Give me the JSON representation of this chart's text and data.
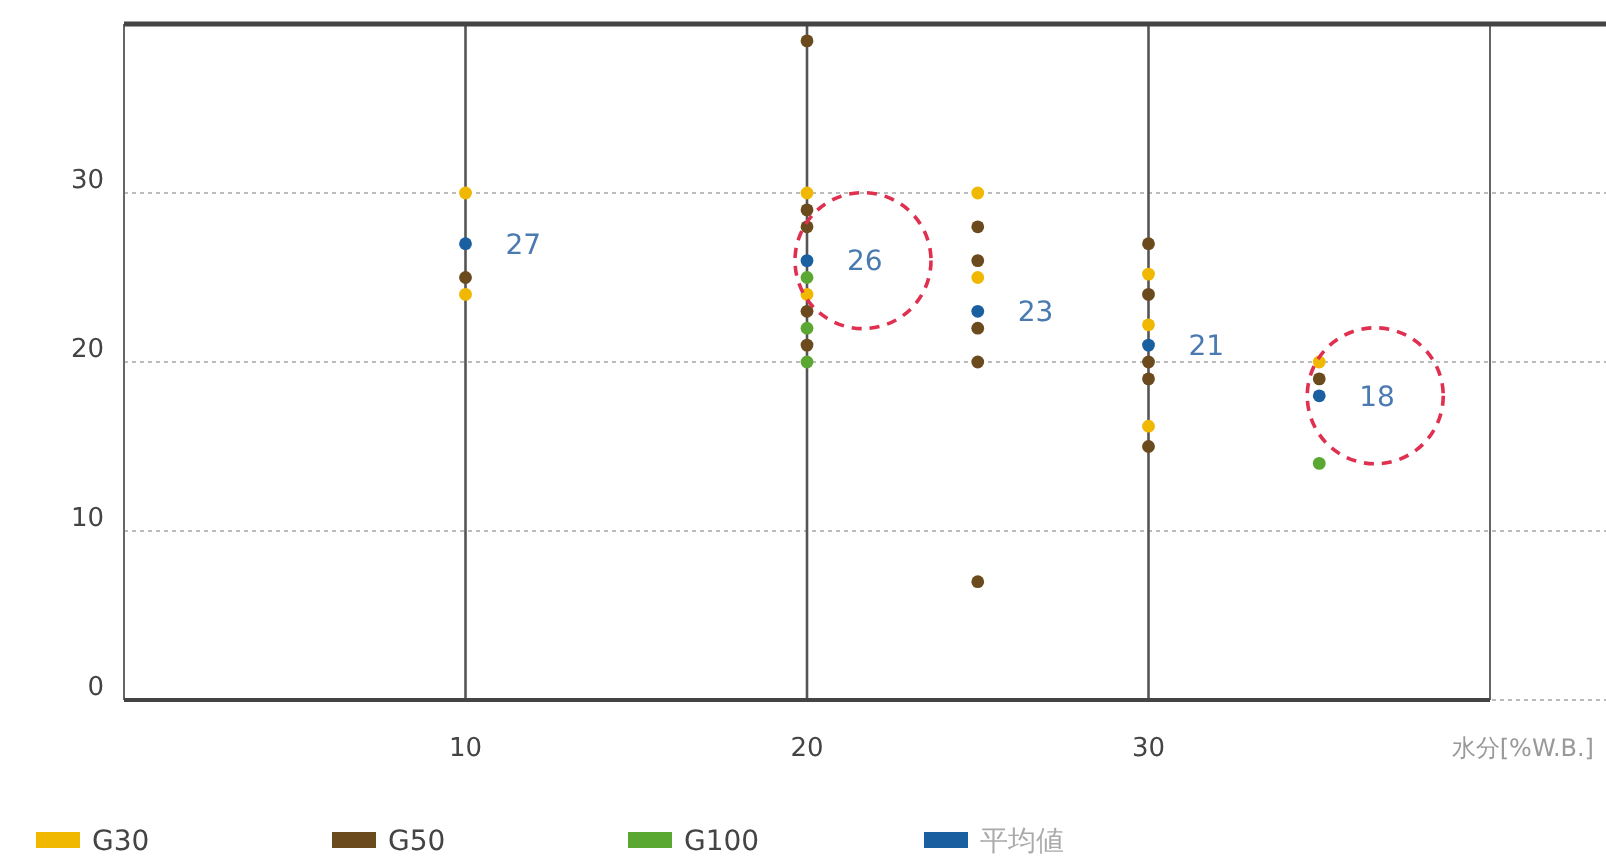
{
  "chart_data": {
    "type": "scatter",
    "xlabel": "水分[%W.B.]",
    "xlim": [
      0,
      40
    ],
    "ylim": [
      0,
      40
    ],
    "xticks": [
      10,
      20,
      30
    ],
    "yticks": [
      0,
      10,
      20,
      30
    ],
    "grid": true,
    "legend": "bottom",
    "marker": "circle",
    "series": [
      {
        "name": "G30",
        "color": "#f0b800",
        "x": [
          10,
          10,
          20,
          20,
          25,
          25,
          30,
          30,
          30,
          35
        ],
        "values": [
          30,
          24,
          30,
          24,
          30,
          25,
          25.2,
          22.2,
          16.2,
          20
        ]
      },
      {
        "name": "G50",
        "color": "#6b4a1e",
        "x": [
          10,
          20,
          20,
          20,
          20,
          20,
          25,
          25,
          25,
          25,
          25,
          30,
          30,
          30,
          30,
          30,
          35
        ],
        "values": [
          25,
          39,
          29,
          28,
          23,
          21,
          28,
          26,
          22,
          20,
          7,
          27,
          24,
          20,
          19,
          15,
          19
        ]
      },
      {
        "name": "G100",
        "color": "#5aa832",
        "x": [
          20,
          20,
          20,
          35
        ],
        "values": [
          25,
          22,
          20,
          14
        ]
      },
      {
        "name": "平均値",
        "color": "#1a5fa0",
        "x": [
          10,
          20,
          25,
          30,
          35
        ],
        "values": [
          27,
          26,
          23,
          21,
          18
        ]
      }
    ],
    "annotations": [
      {
        "text": "27",
        "x": 10,
        "y": 27
      },
      {
        "text": "26",
        "x": 20,
        "y": 26
      },
      {
        "text": "23",
        "x": 25,
        "y": 23
      },
      {
        "text": "21",
        "x": 30,
        "y": 21
      },
      {
        "text": "18",
        "x": 35,
        "y": 18
      }
    ]
  }
}
